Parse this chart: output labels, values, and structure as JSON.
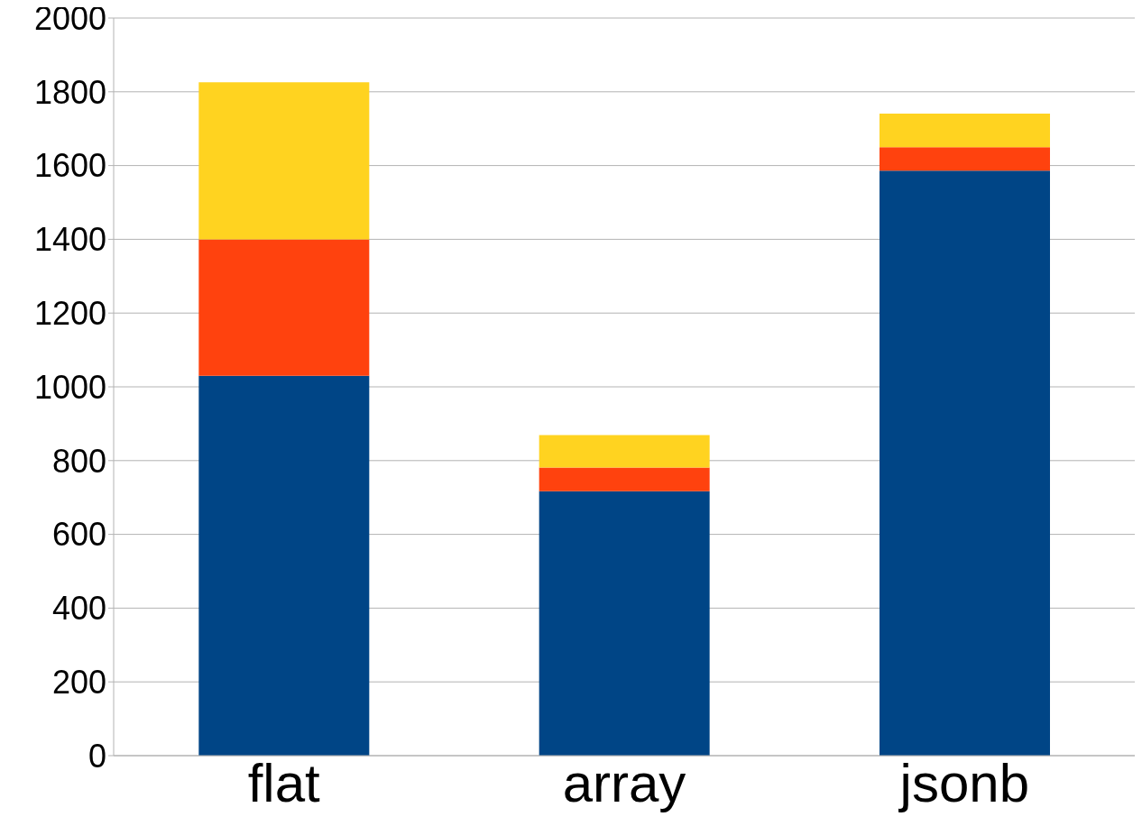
{
  "chart_data": {
    "type": "bar",
    "stacked": true,
    "categories": [
      "flat",
      "array",
      "jsonb"
    ],
    "series": [
      {
        "color": "#004586",
        "values": [
          1030,
          717,
          1586
        ]
      },
      {
        "color": "#ff420e",
        "values": [
          370,
          64,
          64
        ]
      },
      {
        "color": "#ffd320",
        "values": [
          426,
          88,
          91
        ]
      }
    ],
    "ylim": [
      0,
      2000
    ],
    "yticks": [
      0,
      200,
      400,
      600,
      800,
      1000,
      1200,
      1400,
      1600,
      1800,
      2000
    ],
    "grid": "y",
    "legend": false
  }
}
